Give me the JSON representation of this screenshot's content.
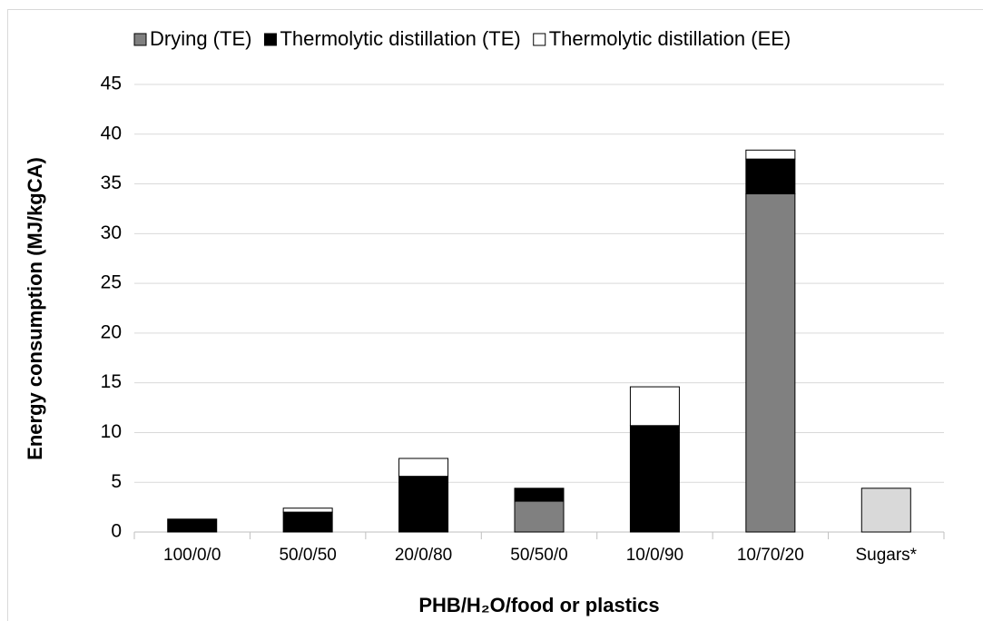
{
  "chart_data": {
    "type": "stacked_bar",
    "categories": [
      "100/0/0",
      "50/0/50",
      "20/0/80",
      "50/50/0",
      "10/0/90",
      "10/70/20",
      "Sugars*"
    ],
    "series": [
      {
        "name": "Drying (TE)",
        "color": "#808080",
        "values": [
          0,
          0,
          0,
          3.1,
          0,
          34.0,
          0
        ]
      },
      {
        "name": "Thermolytic distillation (TE)",
        "color": "#000000",
        "values": [
          1.3,
          2.0,
          5.6,
          1.3,
          10.7,
          3.5,
          0
        ]
      },
      {
        "name": "Thermolytic distillation (EE)",
        "color": "#ffffff",
        "values": [
          0,
          0.4,
          1.8,
          0,
          3.9,
          0.9,
          0
        ]
      },
      {
        "color": "#d9d9d9",
        "values": [
          0,
          0,
          0,
          0,
          0,
          0,
          4.4
        ]
      }
    ],
    "ylabel": "Energy consumption (MJ/kgCA)",
    "xlabel": "PHB/H₂O/food or plastics",
    "ylim": [
      0,
      45
    ],
    "yticks": [
      0,
      5,
      10,
      15,
      20,
      25,
      30,
      35,
      40,
      45
    ],
    "grid": true,
    "legend": "top"
  }
}
